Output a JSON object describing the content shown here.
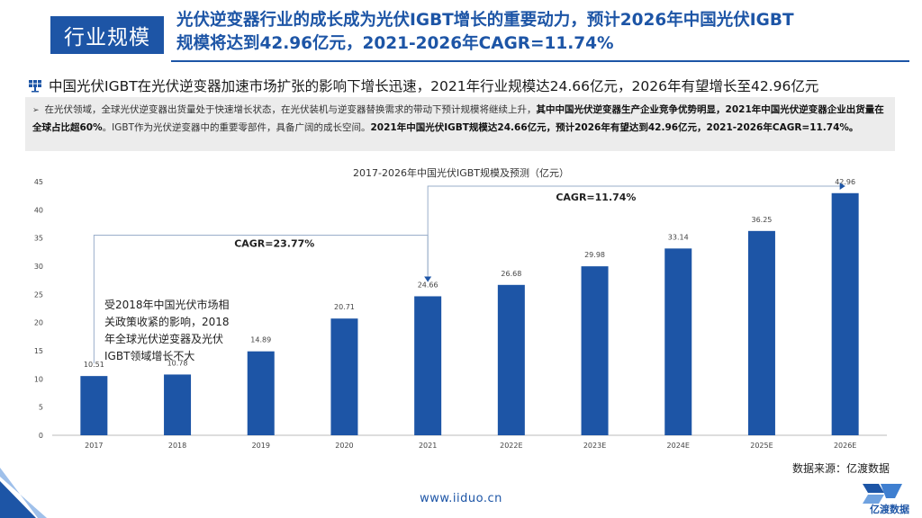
{
  "header": {
    "tag": "行业规模",
    "headline_line1": "光伏逆变器行业的成长成为光伏IGBT增长的重要动力，预计2026年中国光伏IGBT",
    "headline_line2": "规模将达到42.96亿元，2021-2026年CAGR=11.74%"
  },
  "subtitle": "中国光伏IGBT在光伏逆变器加速市场扩张的影响下增长迅速，2021年行业规模达24.66亿元，2026年有望增长至42.96亿元",
  "note": {
    "part1": "在光伏领域，全球光伏逆变器出货量处于快速增长状态，在光伏装机与逆变器替换需求的带动下预计规模将继续上升，",
    "bold1": "其中中国光伏逆变器生产企业竞争优势明显，2021年中国光伏逆变器企业出货量在全球占比超60%",
    "part2": "。IGBT作为光伏逆变器中的重要零部件，具备广阔的成长空间。",
    "bold2": "2021年中国光伏IGBT规模达24.66亿元，预计2026年有望达到42.96亿元，2021-2026年CAGR=11.74%。"
  },
  "chart_data": {
    "type": "bar",
    "title": "2017-2026年中国光伏IGBT规模及预测（亿元）",
    "categories": [
      "2017",
      "2018",
      "2019",
      "2020",
      "2021",
      "2022E",
      "2023E",
      "2024E",
      "2025E",
      "2026E"
    ],
    "values": [
      10.51,
      10.78,
      14.89,
      20.71,
      24.66,
      26.68,
      29.98,
      33.14,
      36.25,
      42.96
    ],
    "data_labels": [
      "10.51",
      "10.78",
      "14.89",
      "20.71",
      "24.66",
      "26.68",
      "29.98",
      "33.14",
      "36.25",
      "42.96"
    ],
    "ylim": [
      0,
      45
    ],
    "yticks": [
      0,
      5,
      10,
      15,
      20,
      25,
      30,
      35,
      40,
      45
    ],
    "grid": false,
    "bar_color": "#1d55a6",
    "annotations": {
      "cagr1": "CAGR=23.77%",
      "cagr2": "CAGR=11.74%",
      "note": "受2018年中国光伏市场相关政策收紧的影响，2018年全球光伏逆变器及光伏IGBT领域增长不大"
    }
  },
  "footer": {
    "source": "数据来源：亿渡数据",
    "url": "www.iiduo.cn",
    "logo_text": "亿渡数据"
  }
}
